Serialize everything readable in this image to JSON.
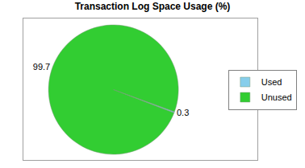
{
  "chart_data": {
    "type": "pie",
    "title": "Transaction Log Space Usage (%)",
    "categories": [
      "Used",
      "Unused"
    ],
    "values": [
      0.3,
      99.7
    ],
    "colors": [
      "#87CEEB",
      "#32CD32"
    ],
    "data_labels": true,
    "legend": "right"
  }
}
